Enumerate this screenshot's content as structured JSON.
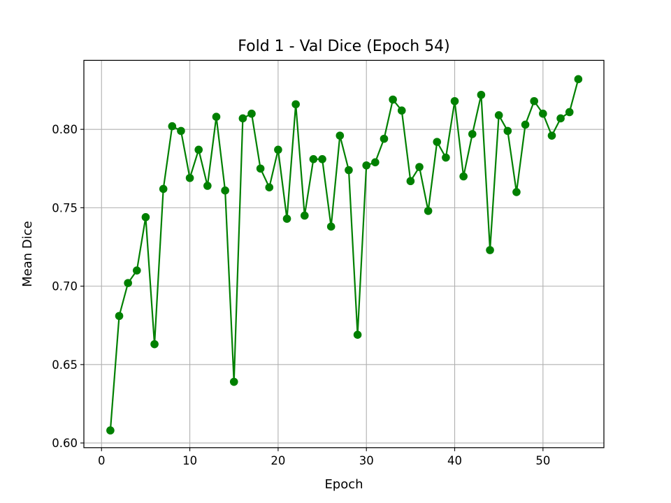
{
  "chart_data": {
    "type": "line",
    "title": "Fold 1 - Val Dice (Epoch 54)",
    "xlabel": "Epoch",
    "ylabel": "Mean Dice",
    "xlim": [
      -2.0,
      56.9
    ],
    "ylim": [
      0.597,
      0.844
    ],
    "xticks": [
      0,
      10,
      20,
      30,
      40,
      50
    ],
    "yticks": [
      0.6,
      0.65,
      0.7,
      0.75,
      0.8
    ],
    "xtick_labels": [
      "0",
      "10",
      "20",
      "30",
      "40",
      "50"
    ],
    "ytick_labels": [
      "0.60",
      "0.65",
      "0.70",
      "0.75",
      "0.80"
    ],
    "grid": true,
    "series": [
      {
        "color": "#008000",
        "marker": "circle",
        "x": [
          1,
          2,
          3,
          4,
          5,
          6,
          7,
          8,
          9,
          10,
          11,
          12,
          13,
          14,
          15,
          16,
          17,
          18,
          19,
          20,
          21,
          22,
          23,
          24,
          25,
          26,
          27,
          28,
          29,
          30,
          31,
          32,
          33,
          34,
          35,
          36,
          37,
          38,
          39,
          40,
          41,
          42,
          43,
          44,
          45,
          46,
          47,
          48,
          49,
          50,
          51,
          52,
          53,
          54
        ],
        "y": [
          0.608,
          0.681,
          0.702,
          0.71,
          0.744,
          0.663,
          0.762,
          0.802,
          0.799,
          0.769,
          0.787,
          0.764,
          0.808,
          0.761,
          0.639,
          0.807,
          0.81,
          0.775,
          0.763,
          0.787,
          0.743,
          0.816,
          0.745,
          0.781,
          0.781,
          0.738,
          0.796,
          0.774,
          0.669,
          0.777,
          0.779,
          0.794,
          0.819,
          0.812,
          0.767,
          0.776,
          0.748,
          0.792,
          0.782,
          0.818,
          0.77,
          0.797,
          0.822,
          0.723,
          0.809,
          0.799,
          0.76,
          0.803,
          0.818,
          0.81,
          0.796,
          0.807,
          0.811,
          0.832
        ]
      }
    ]
  }
}
